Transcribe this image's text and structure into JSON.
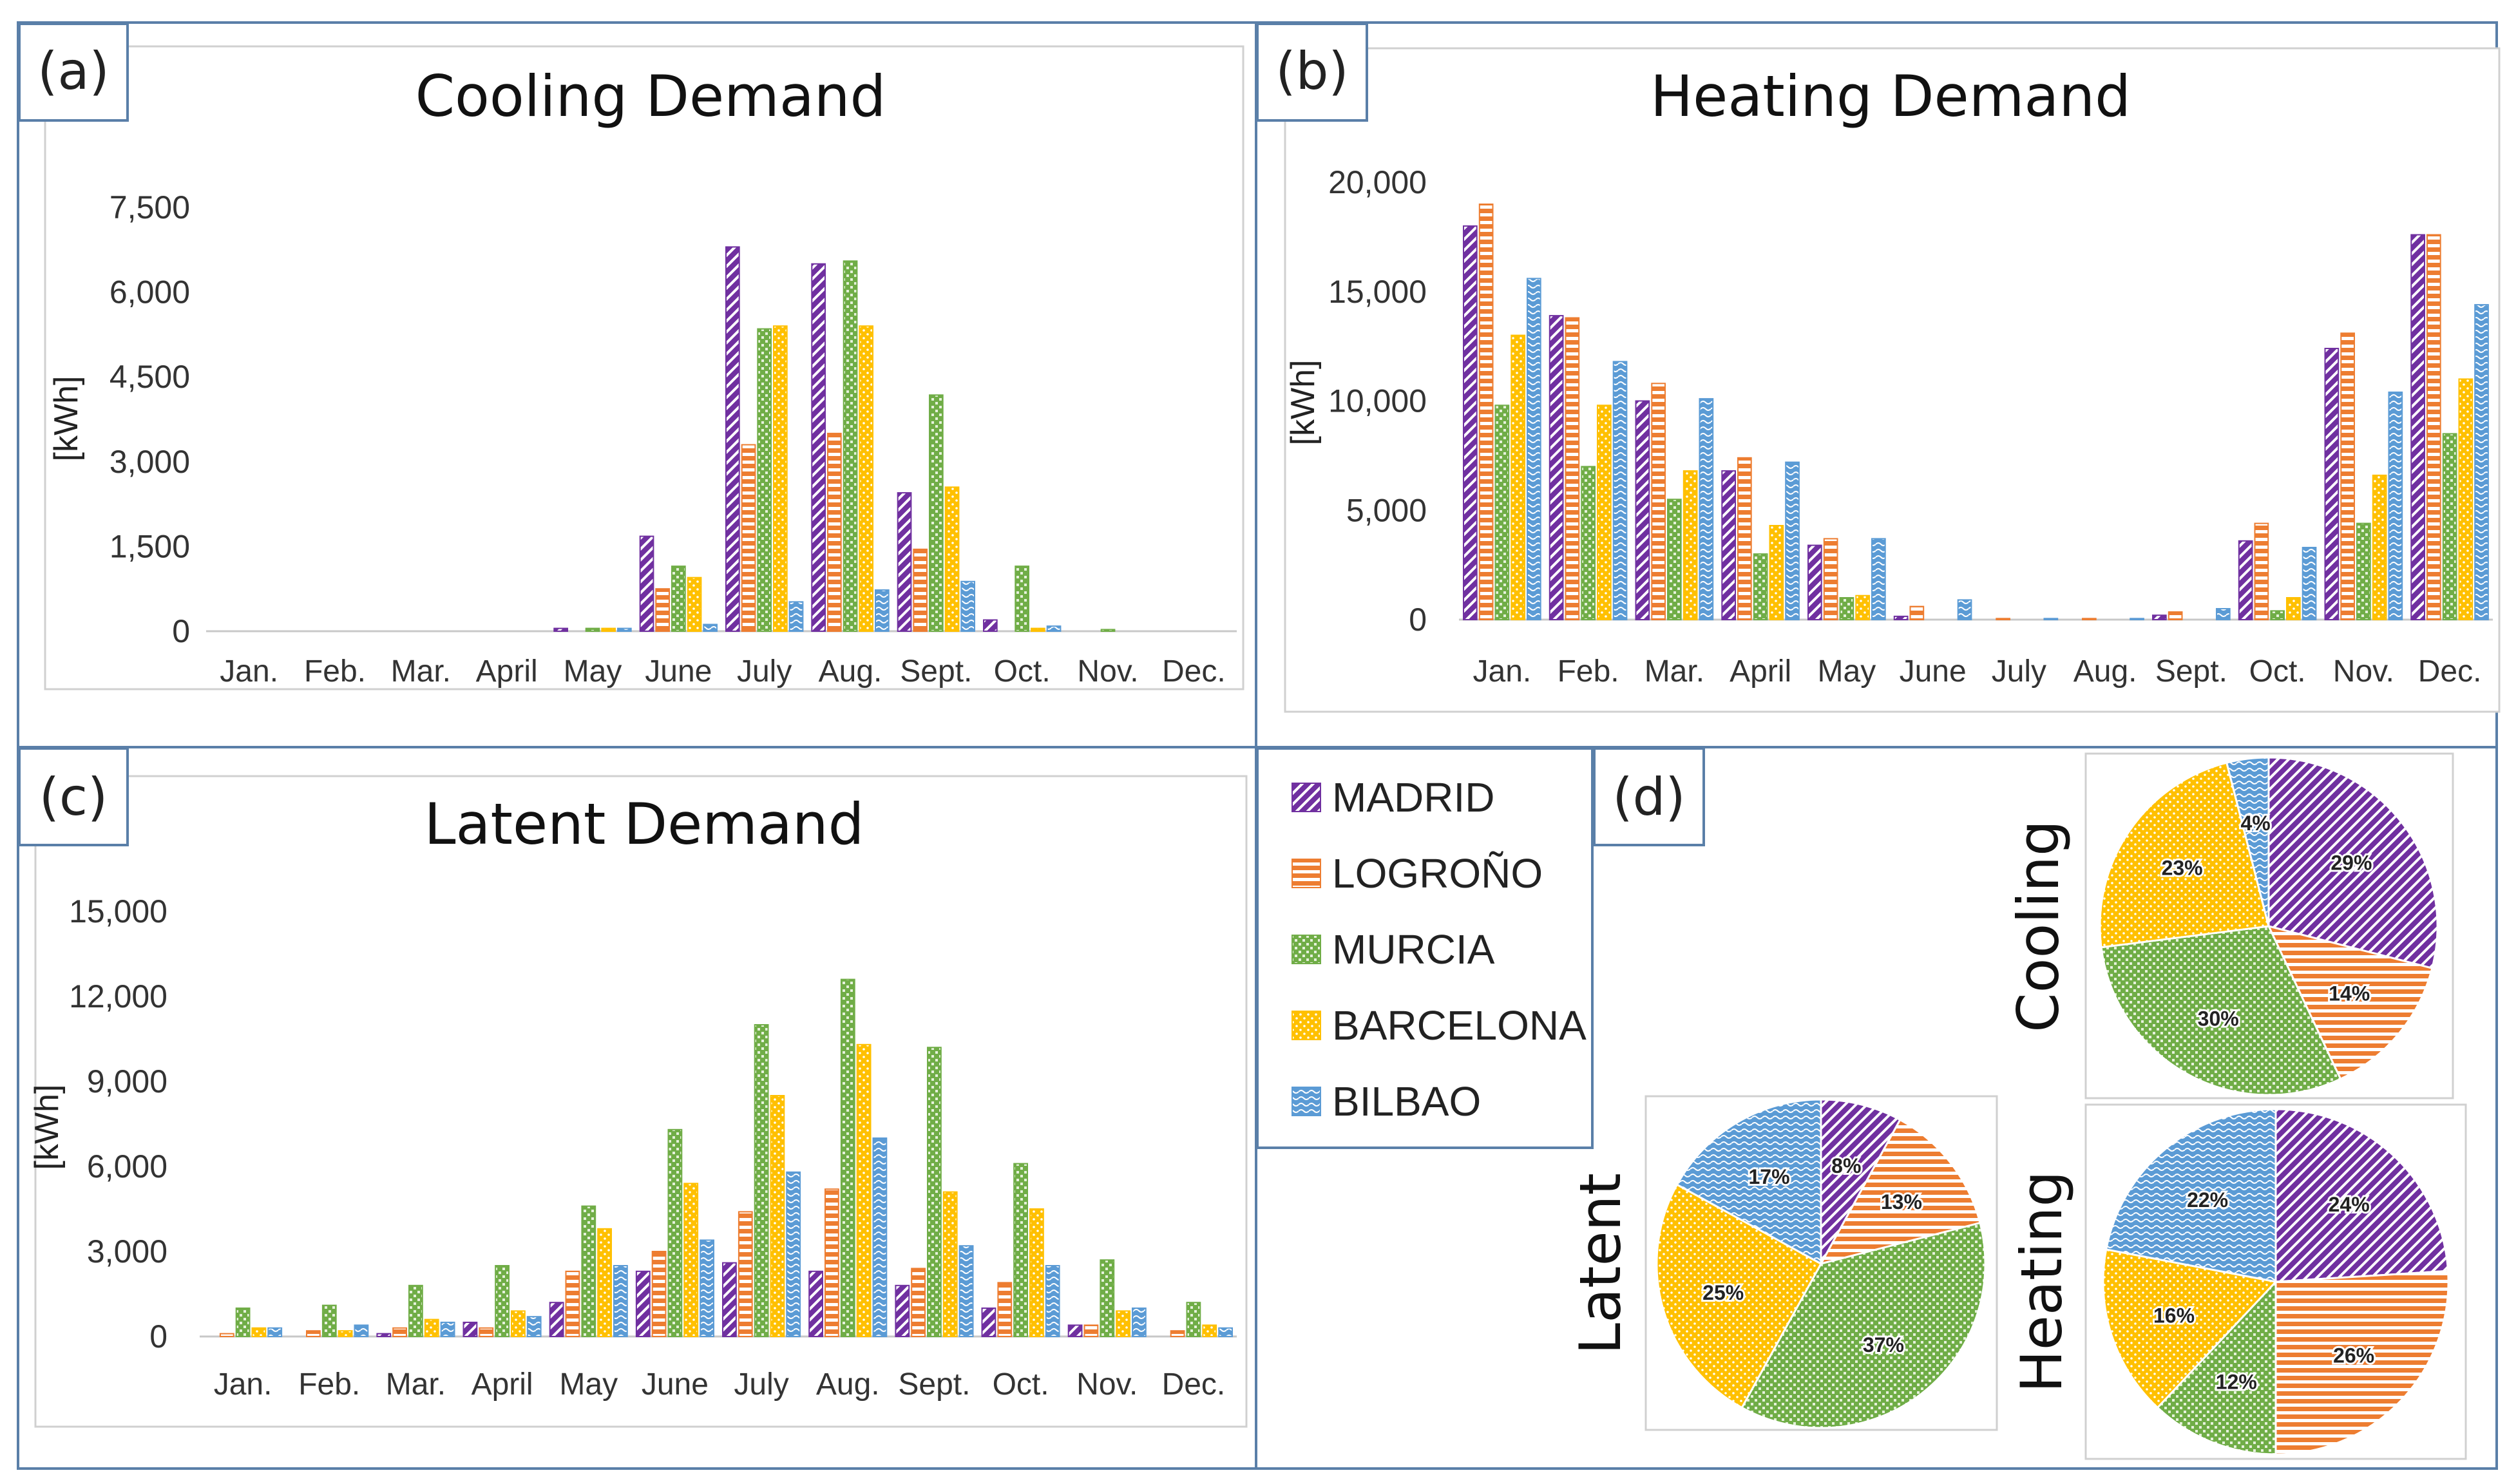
{
  "legend": [
    {
      "name": "MADRID",
      "color": "#7030A0",
      "pattern": "diag"
    },
    {
      "name": "LOGROÑO",
      "color": "#ED7D31",
      "pattern": "horiz"
    },
    {
      "name": "MURCIA",
      "color": "#70AD47",
      "pattern": "check"
    },
    {
      "name": "BARCELONA",
      "color": "#FFC000",
      "pattern": "dots"
    },
    {
      "name": "BILBAO",
      "color": "#5B9BD5",
      "pattern": "wave"
    }
  ],
  "panel_d_label": "(d)",
  "chart_data": [
    {
      "id": "cooling",
      "panel_label": "(a)",
      "type": "bar",
      "title": "Cooling Demand",
      "ylabel": "[kWh]",
      "ylim": [
        0,
        7500
      ],
      "yticks": [
        "7,500",
        "6,000",
        "4,500",
        "3,000",
        "1,500",
        "0"
      ],
      "ytick_values": [
        7500,
        6000,
        4500,
        3000,
        1500,
        0
      ],
      "categories": [
        "Jan.",
        "Feb.",
        "Mar.",
        "April",
        "May",
        "June",
        "July",
        "Aug.",
        "Sept.",
        "Oct.",
        "Nov.",
        "Dec."
      ],
      "series": [
        {
          "name": "MADRID",
          "values": [
            0,
            0,
            0,
            0,
            50,
            1680,
            6800,
            6500,
            2450,
            200,
            0,
            0
          ]
        },
        {
          "name": "LOGROÑO",
          "values": [
            0,
            0,
            0,
            0,
            0,
            750,
            3300,
            3500,
            1450,
            0,
            0,
            0
          ]
        },
        {
          "name": "MURCIA",
          "values": [
            0,
            0,
            0,
            0,
            50,
            1150,
            5350,
            6550,
            4180,
            1150,
            30,
            0
          ]
        },
        {
          "name": "BARCELONA",
          "values": [
            0,
            0,
            0,
            0,
            50,
            950,
            5400,
            5400,
            2550,
            50,
            0,
            0
          ]
        },
        {
          "name": "BILBAO",
          "values": [
            0,
            0,
            0,
            0,
            50,
            120,
            520,
            730,
            880,
            90,
            0,
            0
          ]
        }
      ]
    },
    {
      "id": "heating",
      "panel_label": "(b)",
      "type": "bar",
      "title": "Heating Demand",
      "ylabel": "[kWh]",
      "ylim": [
        0,
        20000
      ],
      "yticks": [
        "20,000",
        "15,000",
        "10,000",
        "5,000",
        "0"
      ],
      "ytick_values": [
        20000,
        15000,
        10000,
        5000,
        0
      ],
      "categories": [
        "Jan.",
        "Feb.",
        "Mar.",
        "April",
        "May",
        "June",
        "July",
        "Aug.",
        "Sept.",
        "Oct.",
        "Nov.",
        "Dec."
      ],
      "series": [
        {
          "name": "MADRID",
          "values": [
            18000,
            13900,
            10000,
            6800,
            3400,
            150,
            0,
            0,
            200,
            3600,
            12400,
            17600
          ]
        },
        {
          "name": "LOGROÑO",
          "values": [
            19000,
            13800,
            10800,
            7400,
            3700,
            600,
            50,
            50,
            350,
            4400,
            13100,
            17600
          ]
        },
        {
          "name": "MURCIA",
          "values": [
            9800,
            7000,
            5500,
            3000,
            1000,
            0,
            0,
            0,
            0,
            400,
            4400,
            8500
          ]
        },
        {
          "name": "BARCELONA",
          "values": [
            13000,
            9800,
            6800,
            4300,
            1100,
            0,
            0,
            0,
            0,
            1000,
            6600,
            11000
          ]
        },
        {
          "name": "BILBAO",
          "values": [
            15600,
            11800,
            10100,
            7200,
            3700,
            900,
            50,
            50,
            500,
            3300,
            10400,
            14400
          ]
        }
      ]
    },
    {
      "id": "latent",
      "panel_label": "(c)",
      "type": "bar",
      "title": "Latent Demand",
      "ylabel": "[kWh]",
      "ylim": [
        0,
        15000
      ],
      "yticks": [
        "15,000",
        "12,000",
        "9,000",
        "6,000",
        "3,000",
        "0"
      ],
      "ytick_values": [
        15000,
        12000,
        9000,
        6000,
        3000,
        0
      ],
      "categories": [
        "Jan.",
        "Feb.",
        "Mar.",
        "April",
        "May",
        "June",
        "July",
        "Aug.",
        "Sept.",
        "Oct.",
        "Nov.",
        "Dec."
      ],
      "series": [
        {
          "name": "MADRID",
          "values": [
            0,
            0,
            100,
            500,
            1200,
            2300,
            2600,
            2300,
            1800,
            1000,
            400,
            0
          ]
        },
        {
          "name": "LOGROÑO",
          "values": [
            100,
            200,
            300,
            300,
            2300,
            3000,
            4400,
            5200,
            2400,
            1900,
            400,
            200
          ]
        },
        {
          "name": "MURCIA",
          "values": [
            1000,
            1100,
            1800,
            2500,
            4600,
            7300,
            11000,
            12600,
            10200,
            6100,
            2700,
            1200
          ]
        },
        {
          "name": "BARCELONA",
          "values": [
            300,
            200,
            600,
            900,
            3800,
            5400,
            8500,
            10300,
            5100,
            4500,
            900,
            400
          ]
        },
        {
          "name": "BILBAO",
          "values": [
            300,
            400,
            500,
            700,
            2500,
            3400,
            5800,
            7000,
            3200,
            2500,
            1000,
            300
          ]
        }
      ]
    },
    {
      "id": "pie-cooling",
      "type": "pie",
      "title": "Cooling",
      "slices": [
        {
          "name": "MADRID",
          "value": 29,
          "label": "29%"
        },
        {
          "name": "LOGROÑO",
          "value": 14,
          "label": "14%"
        },
        {
          "name": "MURCIA",
          "value": 30,
          "label": "30%"
        },
        {
          "name": "BARCELONA",
          "value": 23,
          "label": "23%"
        },
        {
          "name": "BILBAO",
          "value": 4,
          "label": "4%"
        }
      ]
    },
    {
      "id": "pie-heating",
      "type": "pie",
      "title": "Heating",
      "slices": [
        {
          "name": "MADRID",
          "value": 24,
          "label": "24%"
        },
        {
          "name": "LOGROÑO",
          "value": 26,
          "label": "26%"
        },
        {
          "name": "MURCIA",
          "value": 12,
          "label": "12%"
        },
        {
          "name": "BARCELONA",
          "value": 16,
          "label": "16%"
        },
        {
          "name": "BILBAO",
          "value": 22,
          "label": "22%"
        }
      ]
    },
    {
      "id": "pie-latent",
      "type": "pie",
      "title": "Latent",
      "slices": [
        {
          "name": "MADRID",
          "value": 8,
          "label": "8%"
        },
        {
          "name": "LOGROÑO",
          "value": 13,
          "label": "13%"
        },
        {
          "name": "MURCIA",
          "value": 37,
          "label": "37%"
        },
        {
          "name": "BARCELONA",
          "value": 25,
          "label": "25%"
        },
        {
          "name": "BILBAO",
          "value": 17,
          "label": "17%"
        }
      ]
    }
  ]
}
